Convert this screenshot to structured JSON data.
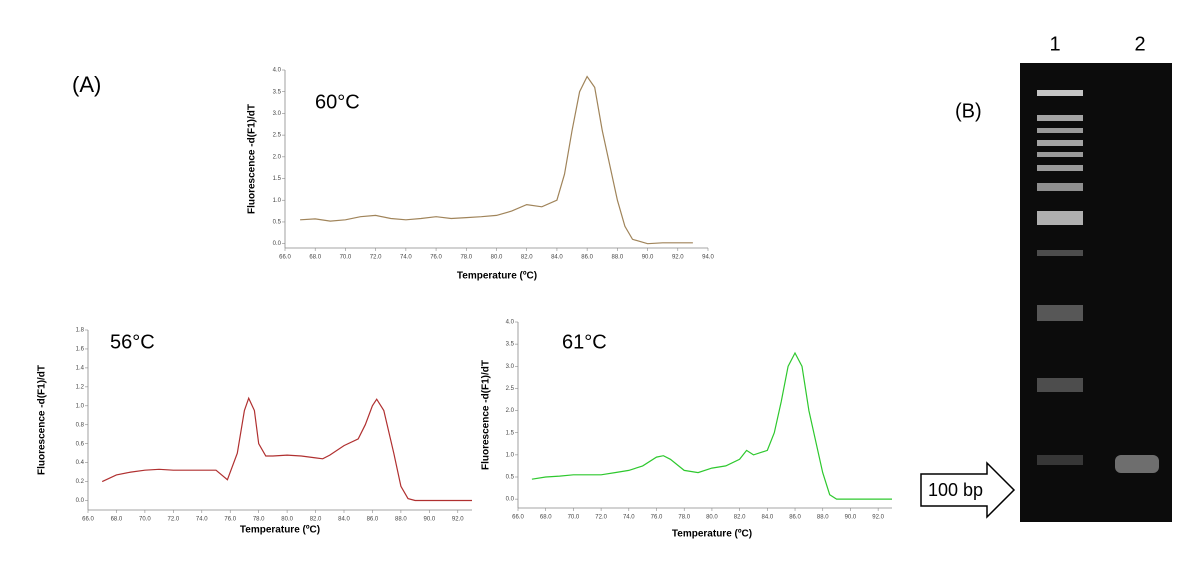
{
  "panel_labels": {
    "a": "(A)",
    "b": "(B)"
  },
  "gel": {
    "lanes": [
      "1",
      "2"
    ],
    "marker_label": "100 bp"
  },
  "chart_data": [
    {
      "type": "line",
      "title": "60°C",
      "x_label": "Temperature (ºC)",
      "y_label": "Fluorescence -d(F1)/dT",
      "color": "#a0845a",
      "x": [
        67,
        68,
        69,
        70,
        71,
        72,
        73,
        74,
        75,
        76,
        77,
        78,
        79,
        80,
        81,
        82,
        83,
        84,
        84.5,
        85,
        85.5,
        86,
        86.5,
        87,
        88,
        88.5,
        89,
        90,
        91,
        92,
        93
      ],
      "values": [
        0.55,
        0.57,
        0.52,
        0.55,
        0.62,
        0.65,
        0.58,
        0.55,
        0.58,
        0.62,
        0.58,
        0.6,
        0.62,
        0.65,
        0.75,
        0.9,
        0.85,
        1.0,
        1.6,
        2.6,
        3.5,
        3.85,
        3.6,
        2.6,
        1.0,
        0.4,
        0.1,
        0.0,
        0.02,
        0.02,
        0.02
      ],
      "xlim": [
        66,
        94
      ],
      "xticks": [
        {
          "value": 66,
          "label": "66.0"
        },
        {
          "value": 68,
          "label": "68.0"
        },
        {
          "value": 70,
          "label": "70.0"
        },
        {
          "value": 72,
          "label": "72.0"
        },
        {
          "value": 74,
          "label": "74.0"
        },
        {
          "value": 76,
          "label": "76.0"
        },
        {
          "value": 78,
          "label": "78.0"
        },
        {
          "value": 80,
          "label": "80.0"
        },
        {
          "value": 82,
          "label": "82.0"
        },
        {
          "value": 84,
          "label": "84.0"
        },
        {
          "value": 86,
          "label": "86.0"
        },
        {
          "value": 88,
          "label": "88.0"
        },
        {
          "value": 90,
          "label": "90.0"
        },
        {
          "value": 92,
          "label": "92.0"
        },
        {
          "value": 94,
          "label": "94.0"
        }
      ],
      "ylim": [
        -0.1,
        4.0
      ],
      "yticks": [
        {
          "value": 0,
          "label": "0.0"
        },
        0.5,
        {
          "value": 1,
          "label": "1.0"
        },
        1.5,
        {
          "value": 2,
          "label": "2.0"
        },
        2.5,
        {
          "value": 3,
          "label": "3.0"
        },
        3.5,
        {
          "value": 4,
          "label": "4.0"
        }
      ]
    },
    {
      "type": "line",
      "title": "56°C",
      "x_label": "Temperature (ºC)",
      "y_label": "Fluorescence -d(F1)/dT",
      "color": "#b03030",
      "x": [
        67,
        68,
        69,
        70,
        71,
        72,
        73,
        74,
        75,
        75.8,
        76.5,
        77,
        77.3,
        77.7,
        78,
        78.5,
        79,
        80,
        81,
        82,
        82.5,
        83,
        84,
        85,
        85.5,
        86,
        86.3,
        86.8,
        87.5,
        88,
        88.5,
        89,
        90,
        91,
        92,
        93
      ],
      "values": [
        0.2,
        0.27,
        0.3,
        0.32,
        0.33,
        0.32,
        0.32,
        0.32,
        0.32,
        0.22,
        0.5,
        0.95,
        1.08,
        0.95,
        0.6,
        0.47,
        0.47,
        0.48,
        0.47,
        0.45,
        0.44,
        0.48,
        0.58,
        0.65,
        0.8,
        1.0,
        1.07,
        0.95,
        0.5,
        0.15,
        0.02,
        0.0,
        0.0,
        0.0,
        0.0,
        0.0
      ],
      "xlim": [
        66,
        93
      ],
      "xticks": [
        {
          "value": 66,
          "label": "66.0"
        },
        {
          "value": 68,
          "label": "68.0"
        },
        {
          "value": 70,
          "label": "70.0"
        },
        {
          "value": 72,
          "label": "72.0"
        },
        {
          "value": 74,
          "label": "74.0"
        },
        {
          "value": 76,
          "label": "76.0"
        },
        {
          "value": 78,
          "label": "78.0"
        },
        {
          "value": 80,
          "label": "80.0"
        },
        {
          "value": 82,
          "label": "82.0"
        },
        {
          "value": 84,
          "label": "84.0"
        },
        {
          "value": 86,
          "label": "86.0"
        },
        {
          "value": 88,
          "label": "88.0"
        },
        {
          "value": 90,
          "label": "90.0"
        },
        {
          "value": 92,
          "label": "92.0"
        }
      ],
      "ylim": [
        -0.1,
        1.8
      ],
      "yticks": [
        {
          "value": 0,
          "label": "0.0"
        },
        0.2,
        0.4,
        0.6,
        0.8,
        {
          "value": 1,
          "label": "1.0"
        },
        1.2,
        1.4,
        1.6,
        1.8
      ]
    },
    {
      "type": "line",
      "title": "61°C",
      "x_label": "Temperature (ºC)",
      "y_label": "Fluorescence -d(F1)/dT",
      "color": "#2ec82e",
      "x": [
        67,
        68,
        69,
        70,
        71,
        72,
        73,
        74,
        75,
        76,
        76.5,
        77,
        78,
        79,
        80,
        81,
        82,
        82.5,
        83,
        84,
        84.5,
        85,
        85.5,
        86,
        86.5,
        87,
        88,
        88.5,
        89,
        90,
        91,
        92,
        93
      ],
      "values": [
        0.45,
        0.5,
        0.52,
        0.55,
        0.55,
        0.55,
        0.6,
        0.65,
        0.75,
        0.95,
        0.98,
        0.9,
        0.65,
        0.6,
        0.7,
        0.75,
        0.9,
        1.1,
        1.0,
        1.1,
        1.5,
        2.2,
        3.0,
        3.3,
        3.0,
        2.0,
        0.6,
        0.1,
        0.0,
        0.0,
        0.0,
        0.0,
        0.0
      ],
      "xlim": [
        66,
        93
      ],
      "xticks": [
        {
          "value": 66,
          "label": "66.0"
        },
        {
          "value": 68,
          "label": "68.0"
        },
        {
          "value": 70,
          "label": "70.0"
        },
        {
          "value": 72,
          "label": "72.0"
        },
        {
          "value": 74,
          "label": "74.0"
        },
        {
          "value": 76,
          "label": "76.0"
        },
        {
          "value": 78,
          "label": "78.0"
        },
        {
          "value": 80,
          "label": "80.0"
        },
        {
          "value": 82,
          "label": "82.0"
        },
        {
          "value": 84,
          "label": "84.0"
        },
        {
          "value": 86,
          "label": "86.0"
        },
        {
          "value": 88,
          "label": "88.0"
        },
        {
          "value": 90,
          "label": "90.0"
        },
        {
          "value": 92,
          "label": "92.0"
        }
      ],
      "ylim": [
        -0.2,
        4.0
      ],
      "yticks": [
        {
          "value": 0,
          "label": "0.0"
        },
        0.5,
        {
          "value": 1,
          "label": "1.0"
        },
        1.5,
        {
          "value": 2,
          "label": "2.0"
        },
        2.5,
        {
          "value": 3,
          "label": "3.0"
        },
        3.5,
        {
          "value": 4,
          "label": "4.0"
        }
      ]
    }
  ]
}
